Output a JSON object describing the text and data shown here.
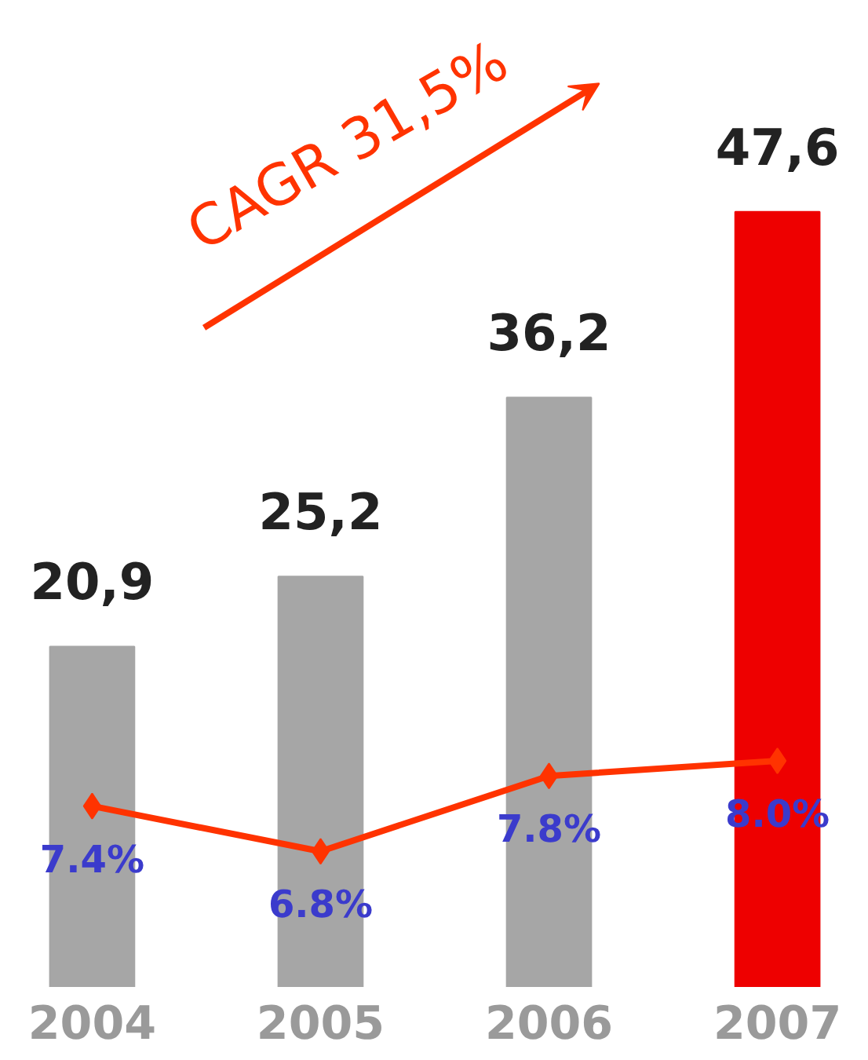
{
  "chart_data": {
    "type": "bar",
    "categories": [
      "2004",
      "2005",
      "2006",
      "2007"
    ],
    "grid": false,
    "tick_labels": "x",
    "marker": "diamond",
    "annotations": [
      "CAGR 31,5%"
    ],
    "series": [
      {
        "colors": [
          "#a6a6a6",
          "#a6a6a6",
          "#a6a6a6",
          "#ee0000"
        ],
        "values": [
          20.9,
          25.2,
          36.2,
          47.6
        ],
        "value_labels": [
          "20,9",
          "25,2",
          "36,2",
          "47,6"
        ]
      },
      {
        "type": "line",
        "axis": "y2",
        "color": "#ff3300",
        "values": [
          7.4,
          6.8,
          7.8,
          8.0
        ],
        "value_labels": [
          "7.4%",
          "6.8%",
          "7.8%",
          "8.0%"
        ]
      }
    ]
  }
}
